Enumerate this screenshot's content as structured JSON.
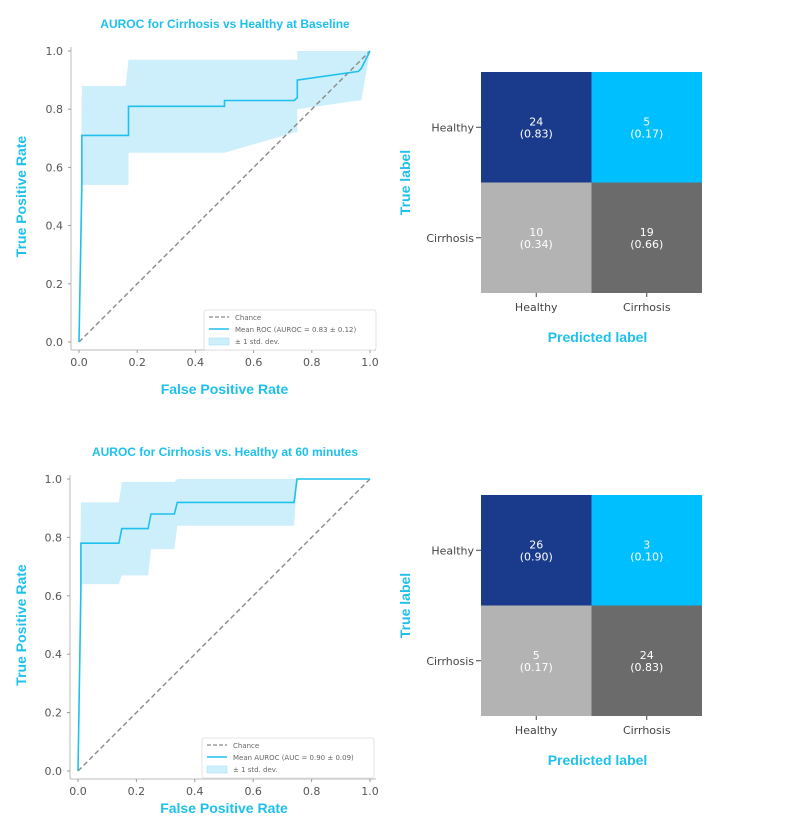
{
  "colors": {
    "accent": "#1ec1ec",
    "band": "#cdeefb",
    "chance": "#888888",
    "cm_dark_blue": "#1a3b8c",
    "cm_light_blue": "#00bfff",
    "cm_light_gray": "#b3b3b3",
    "cm_dark_gray": "#6b6b6b"
  },
  "chart_data": [
    {
      "type": "line",
      "title": "AUROC for Cirrhosis vs Healthy at Baseline",
      "xlabel": "False Positive Rate",
      "ylabel": "True Positive Rate",
      "xlim": [
        0.0,
        1.0
      ],
      "ylim": [
        0.0,
        1.0
      ],
      "x_ticks": [
        "0.0",
        "0.2",
        "0.4",
        "0.6",
        "0.8",
        "1.0"
      ],
      "y_ticks": [
        "0.0",
        "0.2",
        "0.4",
        "0.6",
        "0.8",
        "1.0"
      ],
      "legend_position": "lower-right",
      "legend": [
        "Chance",
        "Mean ROC (AUROC = 0.83 ± 0.12)",
        "± 1 std. dev."
      ],
      "series": [
        {
          "name": "Chance",
          "x": [
            0,
            1
          ],
          "y": [
            0,
            1
          ]
        },
        {
          "name": "Mean ROC (AUROC = 0.83 ± 0.12)",
          "x": [
            0.0,
            0.01,
            0.01,
            0.16,
            0.17,
            0.17,
            0.5,
            0.5,
            0.74,
            0.75,
            0.75,
            0.96,
            0.97,
            1.0
          ],
          "y": [
            0.0,
            0.55,
            0.71,
            0.71,
            0.71,
            0.81,
            0.81,
            0.83,
            0.83,
            0.84,
            0.9,
            0.93,
            0.94,
            1.0
          ]
        },
        {
          "name": "± 1 std. dev.",
          "x": [
            0.0,
            0.01,
            0.01,
            0.16,
            0.17,
            0.17,
            0.5,
            0.5,
            0.74,
            0.75,
            0.75,
            0.96,
            0.97,
            1.0
          ],
          "upper": [
            0.0,
            0.88,
            0.88,
            0.88,
            0.97,
            0.97,
            0.97,
            0.97,
            0.97,
            0.97,
            1.0,
            1.0,
            1.0,
            1.0
          ],
          "lower": [
            0.0,
            0.54,
            0.54,
            0.54,
            0.54,
            0.65,
            0.65,
            0.65,
            0.72,
            0.72,
            0.8,
            0.83,
            0.83,
            1.0
          ]
        }
      ]
    },
    {
      "type": "heatmap",
      "xlabel": "Predicted label",
      "ylabel": "True label",
      "x_categories": [
        "Healthy",
        "Cirrhosis"
      ],
      "y_categories": [
        "Healthy",
        "Cirrhosis"
      ],
      "cells": [
        [
          {
            "count": "24",
            "frac": "(0.83)"
          },
          {
            "count": "5",
            "frac": "(0.17)"
          }
        ],
        [
          {
            "count": "10",
            "frac": "(0.34)"
          },
          {
            "count": "19",
            "frac": "(0.66)"
          }
        ]
      ]
    },
    {
      "type": "line",
      "title": "AUROC for Cirrhosis vs. Healthy at 60 minutes",
      "xlabel": "False Positive Rate",
      "ylabel": "True Positive Rate",
      "xlim": [
        0.0,
        1.0
      ],
      "ylim": [
        0.0,
        1.0
      ],
      "x_ticks": [
        "0.0",
        "0.2",
        "0.4",
        "0.6",
        "0.8",
        "1.0"
      ],
      "y_ticks": [
        "0.0",
        "0.2",
        "0.4",
        "0.6",
        "0.8",
        "1.0"
      ],
      "legend_position": "lower-right",
      "legend": [
        "Chance",
        "Mean AUROC (AUC = 0.90 ± 0.09)",
        "± 1 std. dev."
      ],
      "series": [
        {
          "name": "Chance",
          "x": [
            0,
            1
          ],
          "y": [
            0,
            1
          ]
        },
        {
          "name": "Mean AUROC (AUC = 0.90 ± 0.09)",
          "x": [
            0.0,
            0.01,
            0.01,
            0.14,
            0.15,
            0.24,
            0.25,
            0.33,
            0.34,
            0.74,
            0.75,
            1.0
          ],
          "y": [
            0.0,
            0.62,
            0.78,
            0.78,
            0.83,
            0.83,
            0.88,
            0.88,
            0.92,
            0.92,
            1.0,
            1.0
          ]
        },
        {
          "name": "± 1 std. dev.",
          "x": [
            0.0,
            0.01,
            0.01,
            0.14,
            0.15,
            0.24,
            0.25,
            0.33,
            0.34,
            0.74,
            0.75,
            1.0
          ],
          "upper": [
            0.0,
            0.92,
            0.92,
            0.92,
            0.99,
            0.99,
            0.99,
            0.99,
            1.0,
            1.0,
            1.0,
            1.0
          ],
          "lower": [
            0.0,
            0.64,
            0.64,
            0.64,
            0.67,
            0.67,
            0.76,
            0.76,
            0.84,
            0.84,
            1.0,
            1.0
          ]
        }
      ]
    },
    {
      "type": "heatmap",
      "xlabel": "Predicted label",
      "ylabel": "True label",
      "x_categories": [
        "Healthy",
        "Cirrhosis"
      ],
      "y_categories": [
        "Healthy",
        "Cirrhosis"
      ],
      "cells": [
        [
          {
            "count": "26",
            "frac": "(0.90)"
          },
          {
            "count": "3",
            "frac": "(0.10)"
          }
        ],
        [
          {
            "count": "5",
            "frac": "(0.17)"
          },
          {
            "count": "24",
            "frac": "(0.83)"
          }
        ]
      ]
    }
  ]
}
